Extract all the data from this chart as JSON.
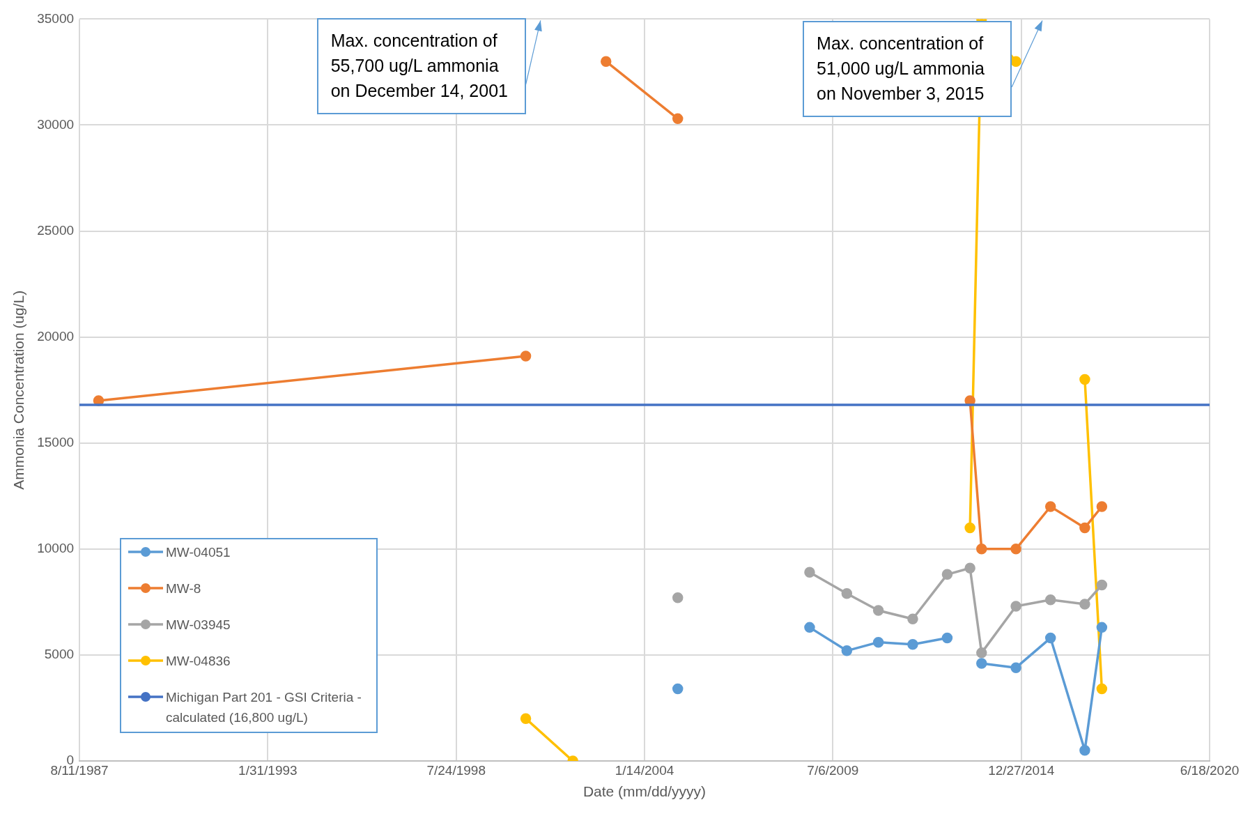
{
  "chart_data": {
    "type": "line",
    "xlabel": "Date (mm/dd/yyyy)",
    "ylabel": "Ammonia Concentration (ug/L)",
    "xlim": [
      "1987-08-11",
      "2020-06-18"
    ],
    "xticks": [
      {
        "value": "1987-08-11",
        "label": "8/11/1987"
      },
      {
        "value": "1993-01-31",
        "label": "1/31/1993"
      },
      {
        "value": "1998-07-24",
        "label": "7/24/1998"
      },
      {
        "value": "2004-01-14",
        "label": "1/14/2004"
      },
      {
        "value": "2009-07-06",
        "label": "7/6/2009"
      },
      {
        "value": "2014-12-27",
        "label": "12/27/2014"
      },
      {
        "value": "2020-06-18",
        "label": "6/18/2020"
      }
    ],
    "ylim": [
      0,
      35000
    ],
    "yticks": [
      0,
      5000,
      10000,
      15000,
      20000,
      25000,
      30000,
      35000
    ],
    "grid": true,
    "marker": "circle",
    "line_style": "solid",
    "legend": "bottom left",
    "series": [
      {
        "name": "MW-04051",
        "color": "#5b9bd5",
        "x": [
          "2005-01",
          "2007-01",
          "2008-11",
          "2009-12",
          "2010-11",
          "2011-11",
          "2012-11",
          "2013-07",
          "2013-11",
          "2014-11",
          "2015-11-03",
          "2016-11",
          "2017-05"
        ],
        "values": [
          3400,
          null,
          6300,
          5200,
          5600,
          5500,
          5800,
          null,
          4600,
          4400,
          5800,
          500,
          6300
        ]
      },
      {
        "name": "MW-8",
        "color": "#ed7d31",
        "x": [
          "1988-03",
          "2000-08",
          "2001-12-14",
          "2002-12",
          "2005-01",
          "2009-01",
          "2013-07",
          "2013-11",
          "2014-11",
          "2015-11-03",
          "2016-11",
          "2017-05"
        ],
        "values": [
          17000,
          19100,
          null,
          33000,
          30300,
          null,
          17000,
          10000,
          10000,
          12000,
          11000,
          12000
        ]
      },
      {
        "name": "MW-03945",
        "color": "#a5a5a5",
        "x": [
          "2005-01",
          "2007-01",
          "2008-11",
          "2009-12",
          "2010-11",
          "2011-11",
          "2012-11",
          "2013-07",
          "2013-11",
          "2014-11",
          "2015-11-03",
          "2016-11",
          "2017-05"
        ],
        "values": [
          7700,
          null,
          8900,
          7900,
          7100,
          6700,
          8800,
          9100,
          5100,
          7300,
          7600,
          7400,
          8300
        ]
      },
      {
        "name": "MW-04836",
        "color": "#ffc000",
        "x": [
          "2000-08",
          "2001-12-14",
          "2007-01",
          "2013-07",
          "2013-11",
          "2014-11",
          "2015-11-03",
          "2016-11",
          "2017-05"
        ],
        "values": [
          2000,
          0,
          null,
          11000,
          35000,
          33000,
          null,
          18000,
          3400
        ]
      }
    ],
    "ref_lines": [
      {
        "axis": "y",
        "value": 16800,
        "label": "Michigan Part 201 - GSI Criteria - calculated (16,800 ug/L)",
        "color": "#4472c4"
      }
    ],
    "annotations": [
      "Max. concentration of 55,700 ug/L ammonia on December 14, 2001",
      "Max. concentration of 51,000 ug/L ammonia on November 3, 2015"
    ]
  }
}
